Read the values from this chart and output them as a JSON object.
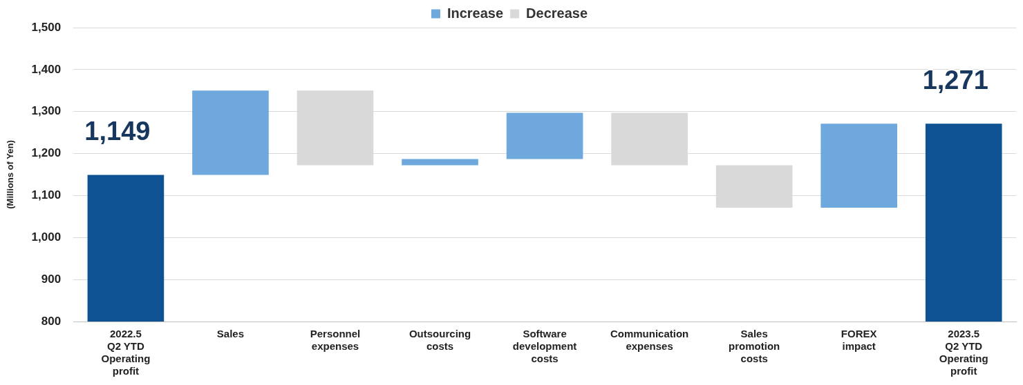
{
  "chart_data": {
    "type": "bar",
    "ylabel": "(Millions of Yen)",
    "categories": [
      "2022.5\nQ2 YTD\nOperating\nprofit",
      "Sales",
      "Personnel\nexpenses",
      "Outsourcing\ncosts",
      "Software\ndevelopment\ncosts",
      "Communication\nexpenses",
      "Sales\npromotion\ncosts",
      "FOREX\nimpact",
      "2023.5\nQ2 YTD\nOperating\nprofit"
    ],
    "series": [
      {
        "color": "#0f5294",
        "values": [
          1149,
          null,
          null,
          null,
          null,
          null,
          null,
          null,
          1271
        ],
        "value_labels": [
          "1,149",
          null,
          null,
          null,
          null,
          null,
          null,
          null,
          "1,271"
        ]
      },
      {
        "name": "Increase",
        "color": "#6fa8dc",
        "values": [
          null,
          201,
          null,
          15,
          110,
          null,
          null,
          200,
          null
        ],
        "base": [
          null,
          1149,
          null,
          1172,
          1187,
          null,
          null,
          1071,
          null
        ]
      },
      {
        "name": "Decrease",
        "color": "#d9d9d9",
        "values": [
          null,
          null,
          178,
          null,
          null,
          125,
          101,
          null,
          null
        ],
        "base": [
          null,
          null,
          1172,
          null,
          null,
          1172,
          1071,
          null,
          null
        ]
      }
    ],
    "ylim": [
      800,
      1500
    ],
    "yticks": [
      {
        "value": 800,
        "label": "800"
      },
      {
        "value": 900,
        "label": "900"
      },
      {
        "value": 1000,
        "label": "1,000"
      },
      {
        "value": 1100,
        "label": "1,100"
      },
      {
        "value": 1200,
        "label": "1,200"
      },
      {
        "value": 1300,
        "label": "1,300"
      },
      {
        "value": 1400,
        "label": "1,400"
      },
      {
        "value": 1500,
        "label": "1,500"
      }
    ],
    "grid": "y",
    "legend": "top"
  }
}
